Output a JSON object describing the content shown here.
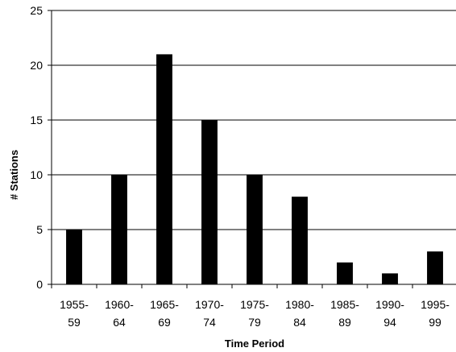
{
  "chart_data": {
    "type": "bar",
    "title": "",
    "xlabel": "Time Period",
    "ylabel": "# Stations",
    "categories": [
      [
        "1955-",
        "59"
      ],
      [
        "1960-",
        "64"
      ],
      [
        "1965-",
        "69"
      ],
      [
        "1970-",
        "74"
      ],
      [
        "1975-",
        "79"
      ],
      [
        "1980-",
        "84"
      ],
      [
        "1985-",
        "89"
      ],
      [
        "1990-",
        "94"
      ],
      [
        "1995-",
        "99"
      ]
    ],
    "values": [
      5,
      10,
      21,
      15,
      10,
      8,
      2,
      1,
      3
    ],
    "ylim": [
      0,
      25
    ],
    "yticks": [
      0,
      5,
      10,
      15,
      20,
      25
    ],
    "grid": true,
    "legend": "none",
    "bar_color": "#000000",
    "grid_color": "#000000"
  }
}
